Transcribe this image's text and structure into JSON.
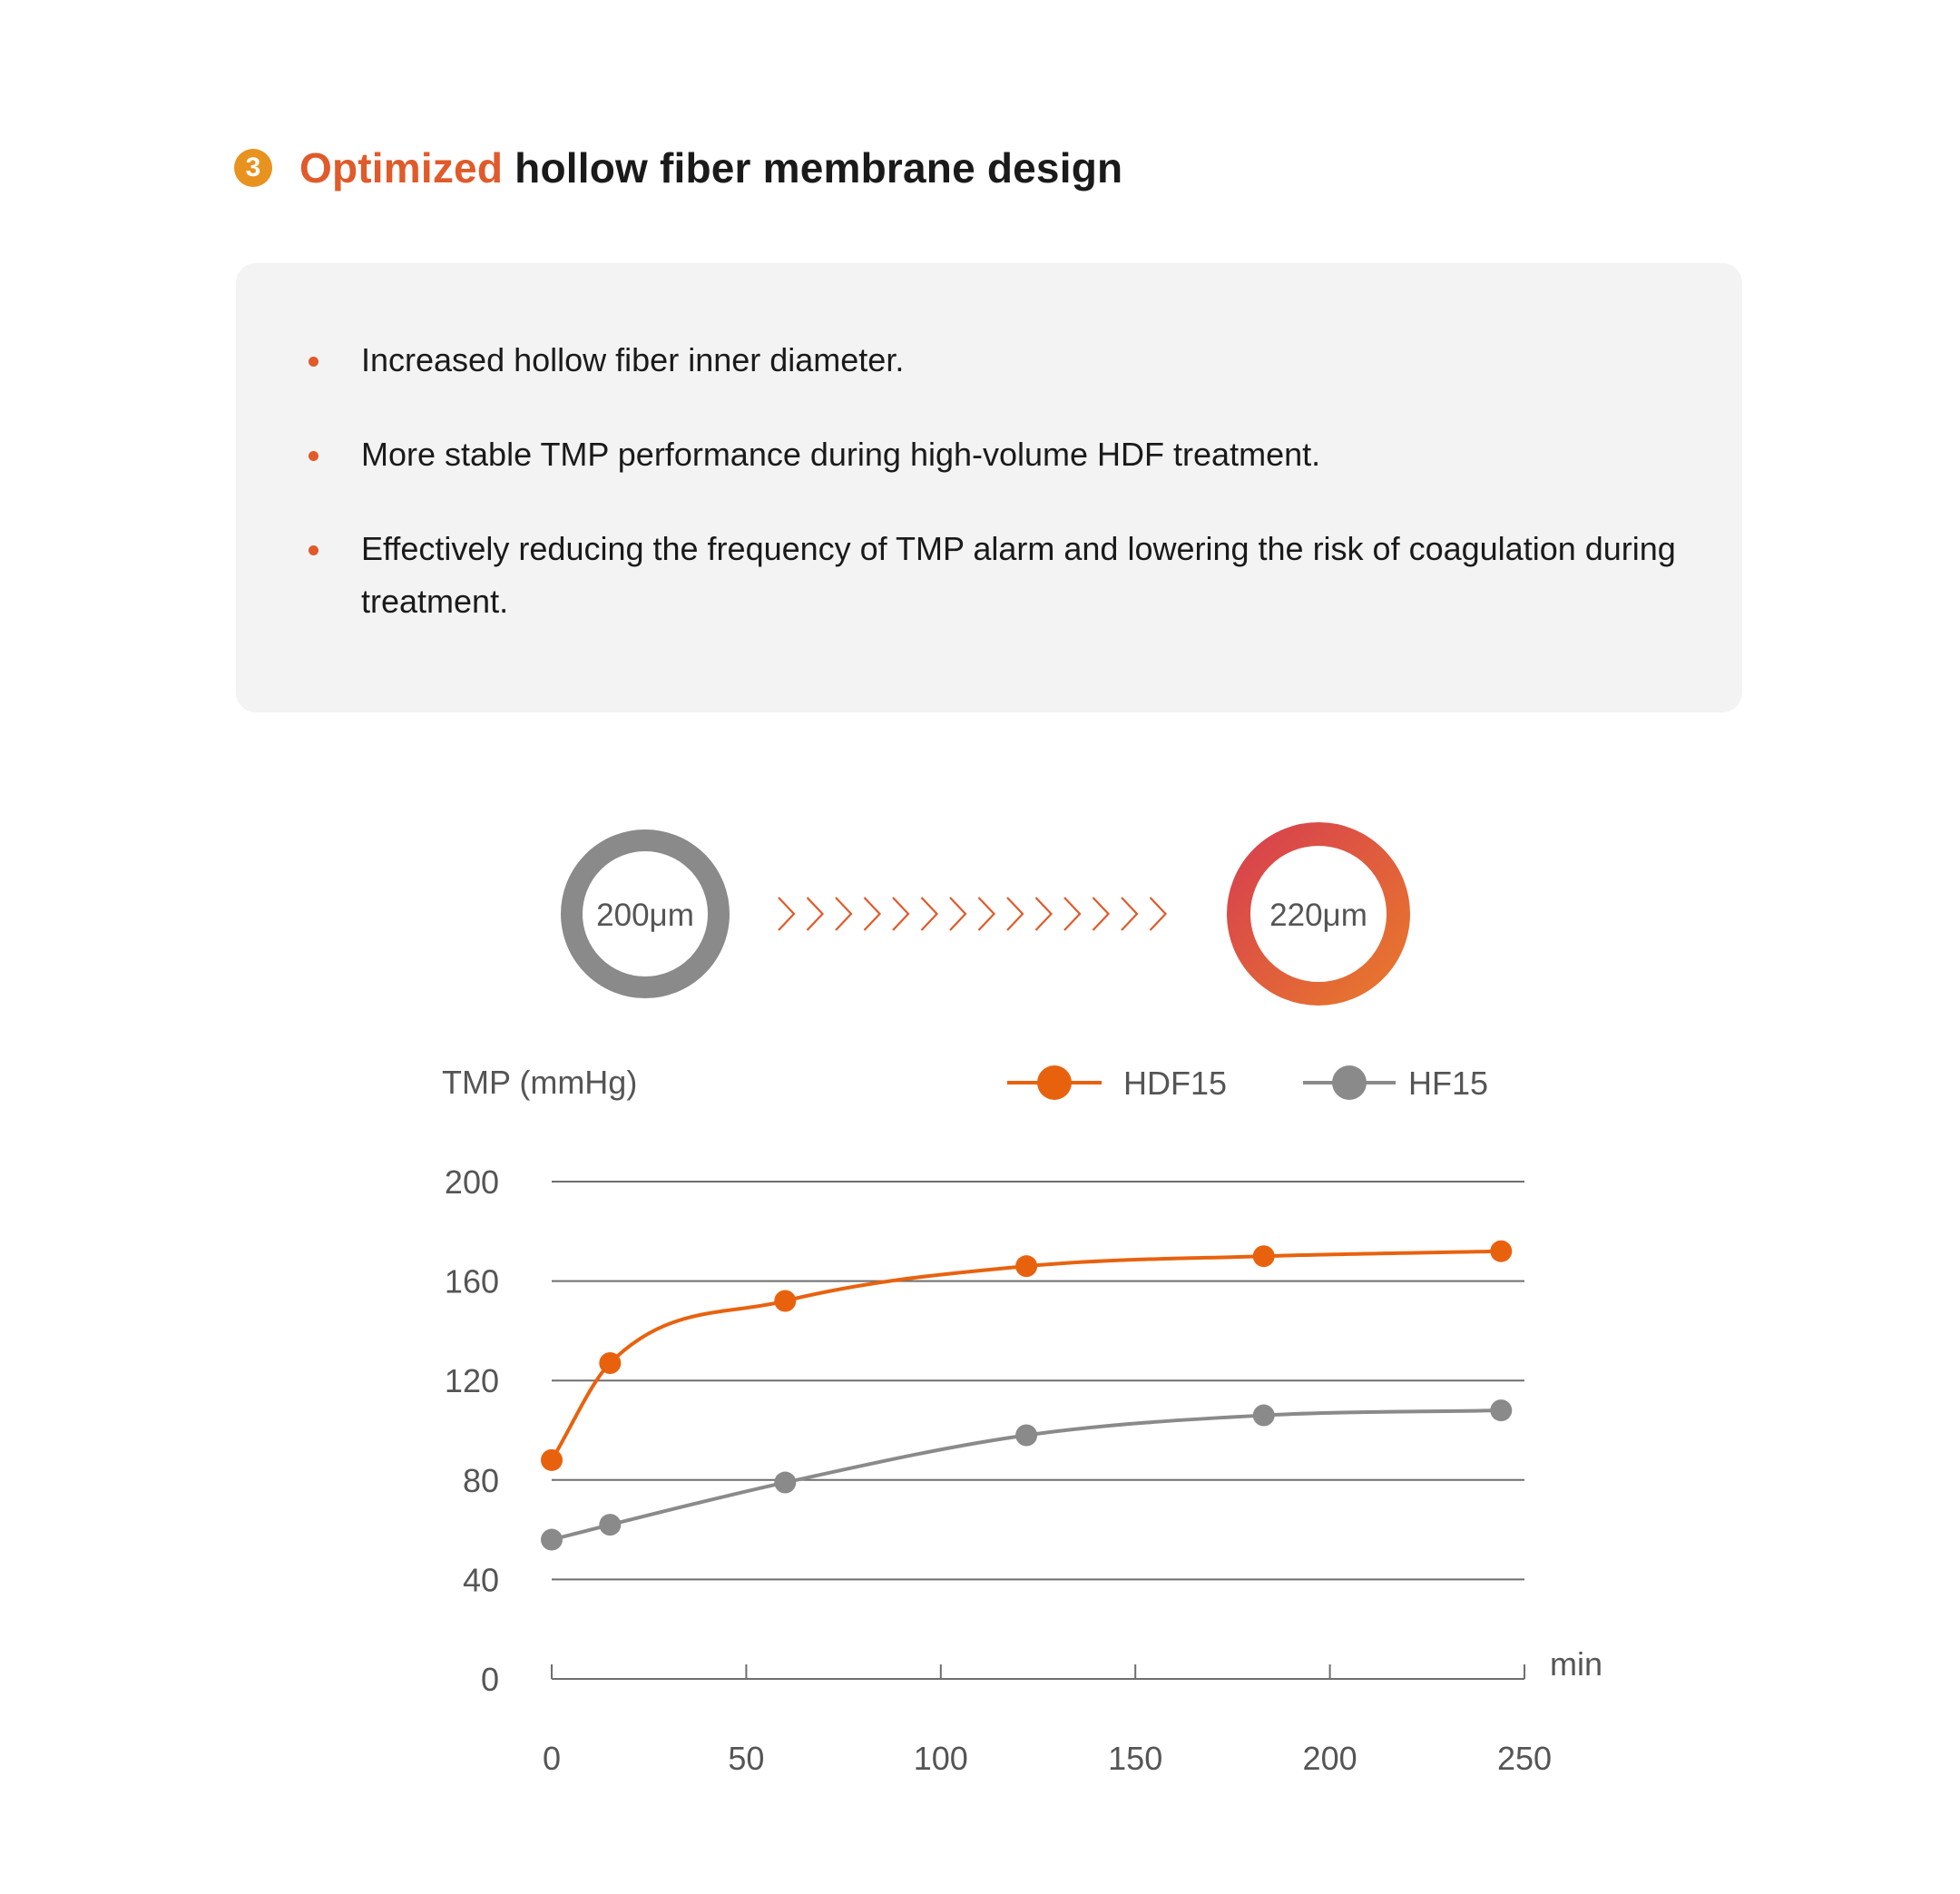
{
  "heading": {
    "number": "3",
    "accent": "Optimized",
    "rest": "hollow fiber membrane design"
  },
  "bullets": [
    "Increased hollow fiber inner diameter.",
    "More stable TMP performance during high-volume HDF treatment.",
    "Effectively reducing the frequency of TMP alarm and lowering the risk of coagulation during treatment."
  ],
  "rings": {
    "before_label": "200μm",
    "after_label": "220μm",
    "before_color": "#8a8a8a",
    "after_gradient": [
      "#d7404f",
      "#e8782c"
    ],
    "arrow_color": "#e05a2a"
  },
  "colors": {
    "accent": "#e05a2a",
    "badge": "#e8931f",
    "panel_bg": "#f3f3f3",
    "hdf": "#e8620e",
    "hf": "#8a8a8a",
    "grid": "#6e6e6e",
    "axis_text": "#555555"
  },
  "chart_data": {
    "type": "line",
    "ylabel": "TMP (mmHg)",
    "xlabel": "min",
    "ylim": [
      0,
      200
    ],
    "xlim": [
      0,
      250
    ],
    "yticks": [
      0,
      40,
      80,
      120,
      160,
      200
    ],
    "xticks": [
      0,
      50,
      100,
      150,
      200,
      250
    ],
    "grid": true,
    "legend_position": "top-right",
    "series": [
      {
        "name": "HDF15",
        "color": "#e8620e",
        "x": [
          0,
          15,
          60,
          122,
          183,
          244
        ],
        "y": [
          88,
          127,
          152,
          166,
          170,
          172
        ]
      },
      {
        "name": "HF15",
        "color": "#8a8a8a",
        "x": [
          0,
          15,
          60,
          122,
          183,
          244
        ],
        "y": [
          56,
          62,
          79,
          98,
          106,
          108
        ]
      }
    ]
  }
}
